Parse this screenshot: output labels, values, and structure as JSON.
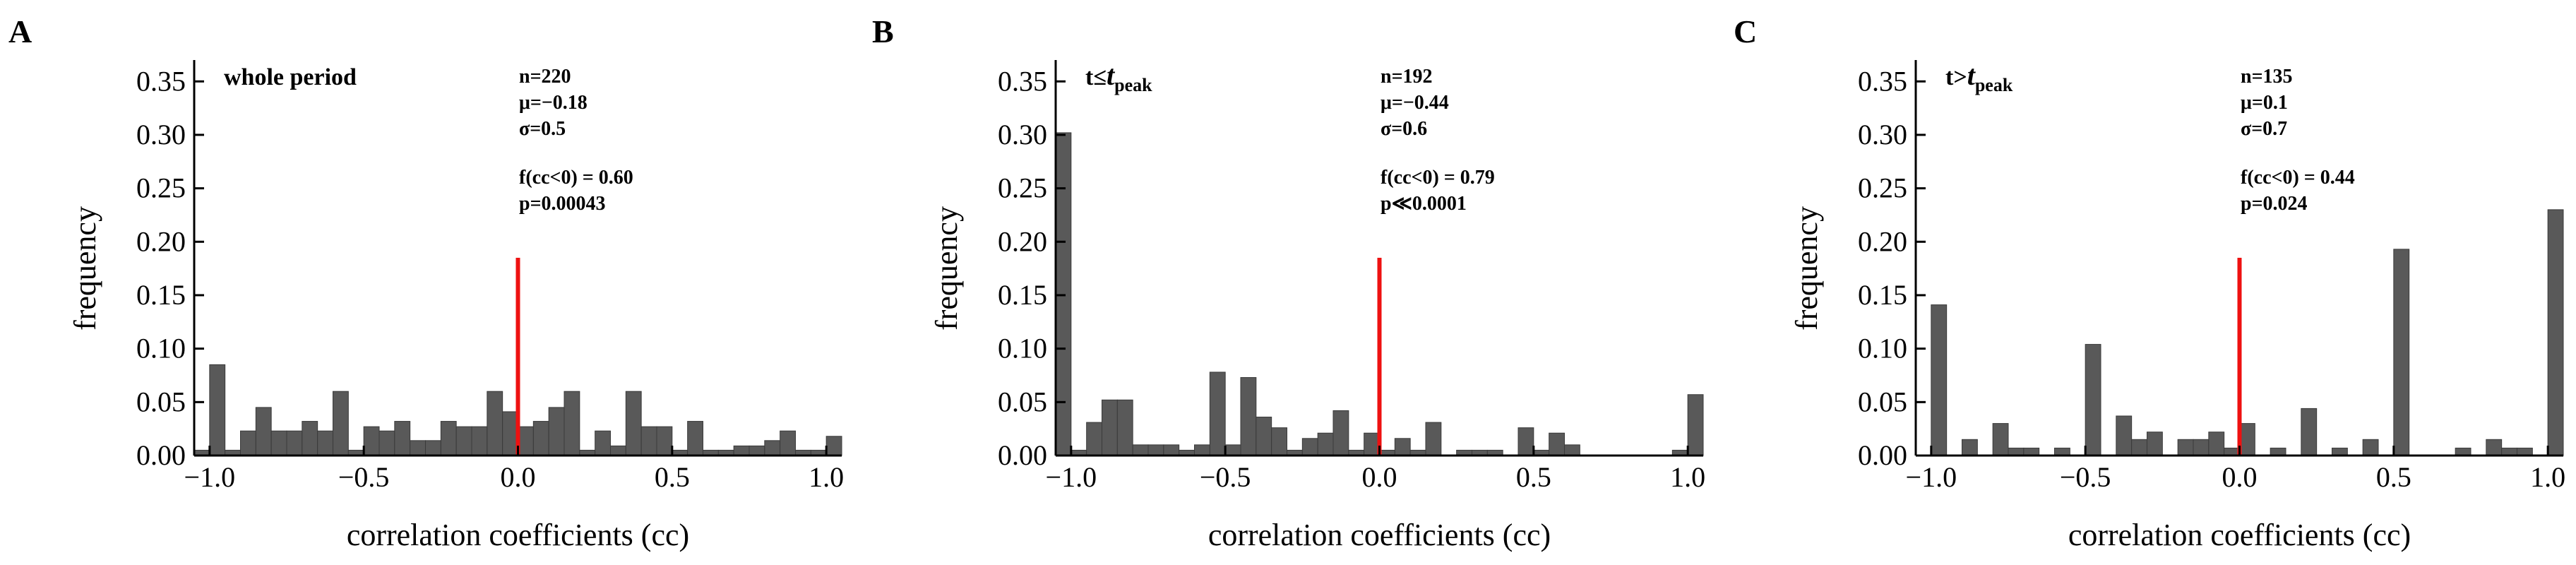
{
  "figure": {
    "bar_color": "#595959",
    "bar_edge_color": "#3a3a3a",
    "marker_color": "#ee1111",
    "axis_color": "#000000"
  },
  "chart_data": [
    {
      "type": "bar",
      "panel": "A",
      "label": "whole period",
      "label_sub": "",
      "xlabel": "correlation coefficients (cc)",
      "ylabel": "frequency",
      "xlim": [
        -1.05,
        1.05
      ],
      "ylim": [
        0,
        0.37
      ],
      "xticks": [
        -1.0,
        -0.5,
        0.0,
        0.5,
        1.0
      ],
      "xtick_labels": [
        "−1.0",
        "−0.5",
        "0.0",
        "0.5",
        "1.0"
      ],
      "yticks": [
        0,
        0.05,
        0.1,
        0.15,
        0.2,
        0.25,
        0.3,
        0.35
      ],
      "ytick_labels": [
        "0.00",
        "0.05",
        "0.10",
        "0.15",
        "0.20",
        "0.25",
        "0.30",
        "0.35"
      ],
      "bin_width": 0.05,
      "bin_left_edges": [
        -1.05,
        -1.0,
        -0.95,
        -0.9,
        -0.85,
        -0.8,
        -0.75,
        -0.7,
        -0.65,
        -0.6,
        -0.55,
        -0.5,
        -0.45,
        -0.4,
        -0.35,
        -0.3,
        -0.25,
        -0.2,
        -0.15,
        -0.1,
        -0.05,
        0.0,
        0.05,
        0.1,
        0.15,
        0.2,
        0.25,
        0.3,
        0.35,
        0.4,
        0.45,
        0.5,
        0.55,
        0.6,
        0.65,
        0.7,
        0.75,
        0.8,
        0.85,
        0.9,
        0.95,
        1.0
      ],
      "values": [
        0.005,
        0.085,
        0.005,
        0.023,
        0.045,
        0.023,
        0.023,
        0.032,
        0.023,
        0.06,
        0.005,
        0.027,
        0.023,
        0.032,
        0.014,
        0.014,
        0.032,
        0.027,
        0.027,
        0.06,
        0.041,
        0.027,
        0.032,
        0.045,
        0.06,
        0.005,
        0.023,
        0.009,
        0.06,
        0.027,
        0.027,
        0.005,
        0.032,
        0.005,
        0.005,
        0.009,
        0.009,
        0.014,
        0.023,
        0.005,
        0.005,
        0.018
      ],
      "marker": {
        "x": 0.0,
        "y_top": 0.185
      },
      "annotations": {
        "stats": [
          "n=220",
          "μ=−0.18",
          "σ=0.5"
        ],
        "tests": [
          "f(cc<0) = 0.60",
          "p=0.00043"
        ]
      }
    },
    {
      "type": "bar",
      "panel": "B",
      "label": "t≤t",
      "label_sub": "peak",
      "xlabel": "correlation coefficients (cc)",
      "ylabel": "frequency",
      "xlim": [
        -1.05,
        1.05
      ],
      "ylim": [
        0,
        0.37
      ],
      "xticks": [
        -1.0,
        -0.5,
        0.0,
        0.5,
        1.0
      ],
      "xtick_labels": [
        "−1.0",
        "−0.5",
        "0.0",
        "0.5",
        "1.0"
      ],
      "yticks": [
        0,
        0.05,
        0.1,
        0.15,
        0.2,
        0.25,
        0.3,
        0.35
      ],
      "ytick_labels": [
        "0.00",
        "0.05",
        "0.10",
        "0.15",
        "0.20",
        "0.25",
        "0.30",
        "0.35"
      ],
      "bin_width": 0.05,
      "bin_left_edges": [
        -1.05,
        -1.0,
        -0.95,
        -0.9,
        -0.85,
        -0.8,
        -0.75,
        -0.7,
        -0.65,
        -0.6,
        -0.55,
        -0.5,
        -0.45,
        -0.4,
        -0.35,
        -0.3,
        -0.25,
        -0.2,
        -0.15,
        -0.1,
        -0.05,
        0.0,
        0.05,
        0.1,
        0.15,
        0.2,
        0.25,
        0.3,
        0.35,
        0.4,
        0.45,
        0.5,
        0.55,
        0.6,
        0.65,
        0.7,
        0.75,
        0.8,
        0.85,
        0.9,
        0.95,
        1.0
      ],
      "values": [
        0.302,
        0.005,
        0.031,
        0.052,
        0.052,
        0.01,
        0.01,
        0.01,
        0.005,
        0.01,
        0.078,
        0.01,
        0.073,
        0.036,
        0.026,
        0.005,
        0.016,
        0.021,
        0.042,
        0.005,
        0.021,
        0.005,
        0.016,
        0.005,
        0.031,
        0.0,
        0.005,
        0.005,
        0.005,
        0.0,
        0.026,
        0.005,
        0.021,
        0.01,
        0.0,
        0.0,
        0.0,
        0.0,
        0.0,
        0.0,
        0.005,
        0.057
      ],
      "marker": {
        "x": 0.0,
        "y_top": 0.185
      },
      "annotations": {
        "stats": [
          "n=192",
          "μ=−0.44",
          "σ=0.6"
        ],
        "tests": [
          "f(cc<0) = 0.79",
          "p≪0.0001"
        ]
      }
    },
    {
      "type": "bar",
      "panel": "C",
      "label": "t>t",
      "label_sub": "peak",
      "xlabel": "correlation coefficients (cc)",
      "ylabel": "frequency",
      "xlim": [
        -1.05,
        1.05
      ],
      "ylim": [
        0,
        0.37
      ],
      "xticks": [
        -1.0,
        -0.5,
        0.0,
        0.5,
        1.0
      ],
      "xtick_labels": [
        "−1.0",
        "−0.5",
        "0.0",
        "0.5",
        "1.0"
      ],
      "yticks": [
        0,
        0.05,
        0.1,
        0.15,
        0.2,
        0.25,
        0.3,
        0.35
      ],
      "ytick_labels": [
        "0.00",
        "0.05",
        "0.10",
        "0.15",
        "0.20",
        "0.25",
        "0.30",
        "0.35"
      ],
      "bin_width": 0.05,
      "bin_left_edges": [
        -1.05,
        -1.0,
        -0.95,
        -0.9,
        -0.85,
        -0.8,
        -0.75,
        -0.7,
        -0.65,
        -0.6,
        -0.55,
        -0.5,
        -0.45,
        -0.4,
        -0.35,
        -0.3,
        -0.25,
        -0.2,
        -0.15,
        -0.1,
        -0.05,
        0.0,
        0.05,
        0.1,
        0.15,
        0.2,
        0.25,
        0.3,
        0.35,
        0.4,
        0.45,
        0.5,
        0.55,
        0.6,
        0.65,
        0.7,
        0.75,
        0.8,
        0.85,
        0.9,
        0.95,
        1.0
      ],
      "values": [
        0.0,
        0.141,
        0.0,
        0.015,
        0.0,
        0.03,
        0.007,
        0.007,
        0.0,
        0.007,
        0.0,
        0.104,
        0.0,
        0.037,
        0.015,
        0.022,
        0.0,
        0.015,
        0.015,
        0.022,
        0.007,
        0.03,
        0.0,
        0.007,
        0.0,
        0.044,
        0.0,
        0.007,
        0.0,
        0.015,
        0.0,
        0.193,
        0.0,
        0.0,
        0.0,
        0.007,
        0.0,
        0.015,
        0.007,
        0.007,
        0.0,
        0.23
      ],
      "marker": {
        "x": 0.0,
        "y_top": 0.185
      },
      "annotations": {
        "stats": [
          "n=135",
          "μ=0.1",
          "σ=0.7"
        ],
        "tests": [
          "f(cc<0) = 0.44",
          "p=0.024"
        ]
      }
    }
  ]
}
